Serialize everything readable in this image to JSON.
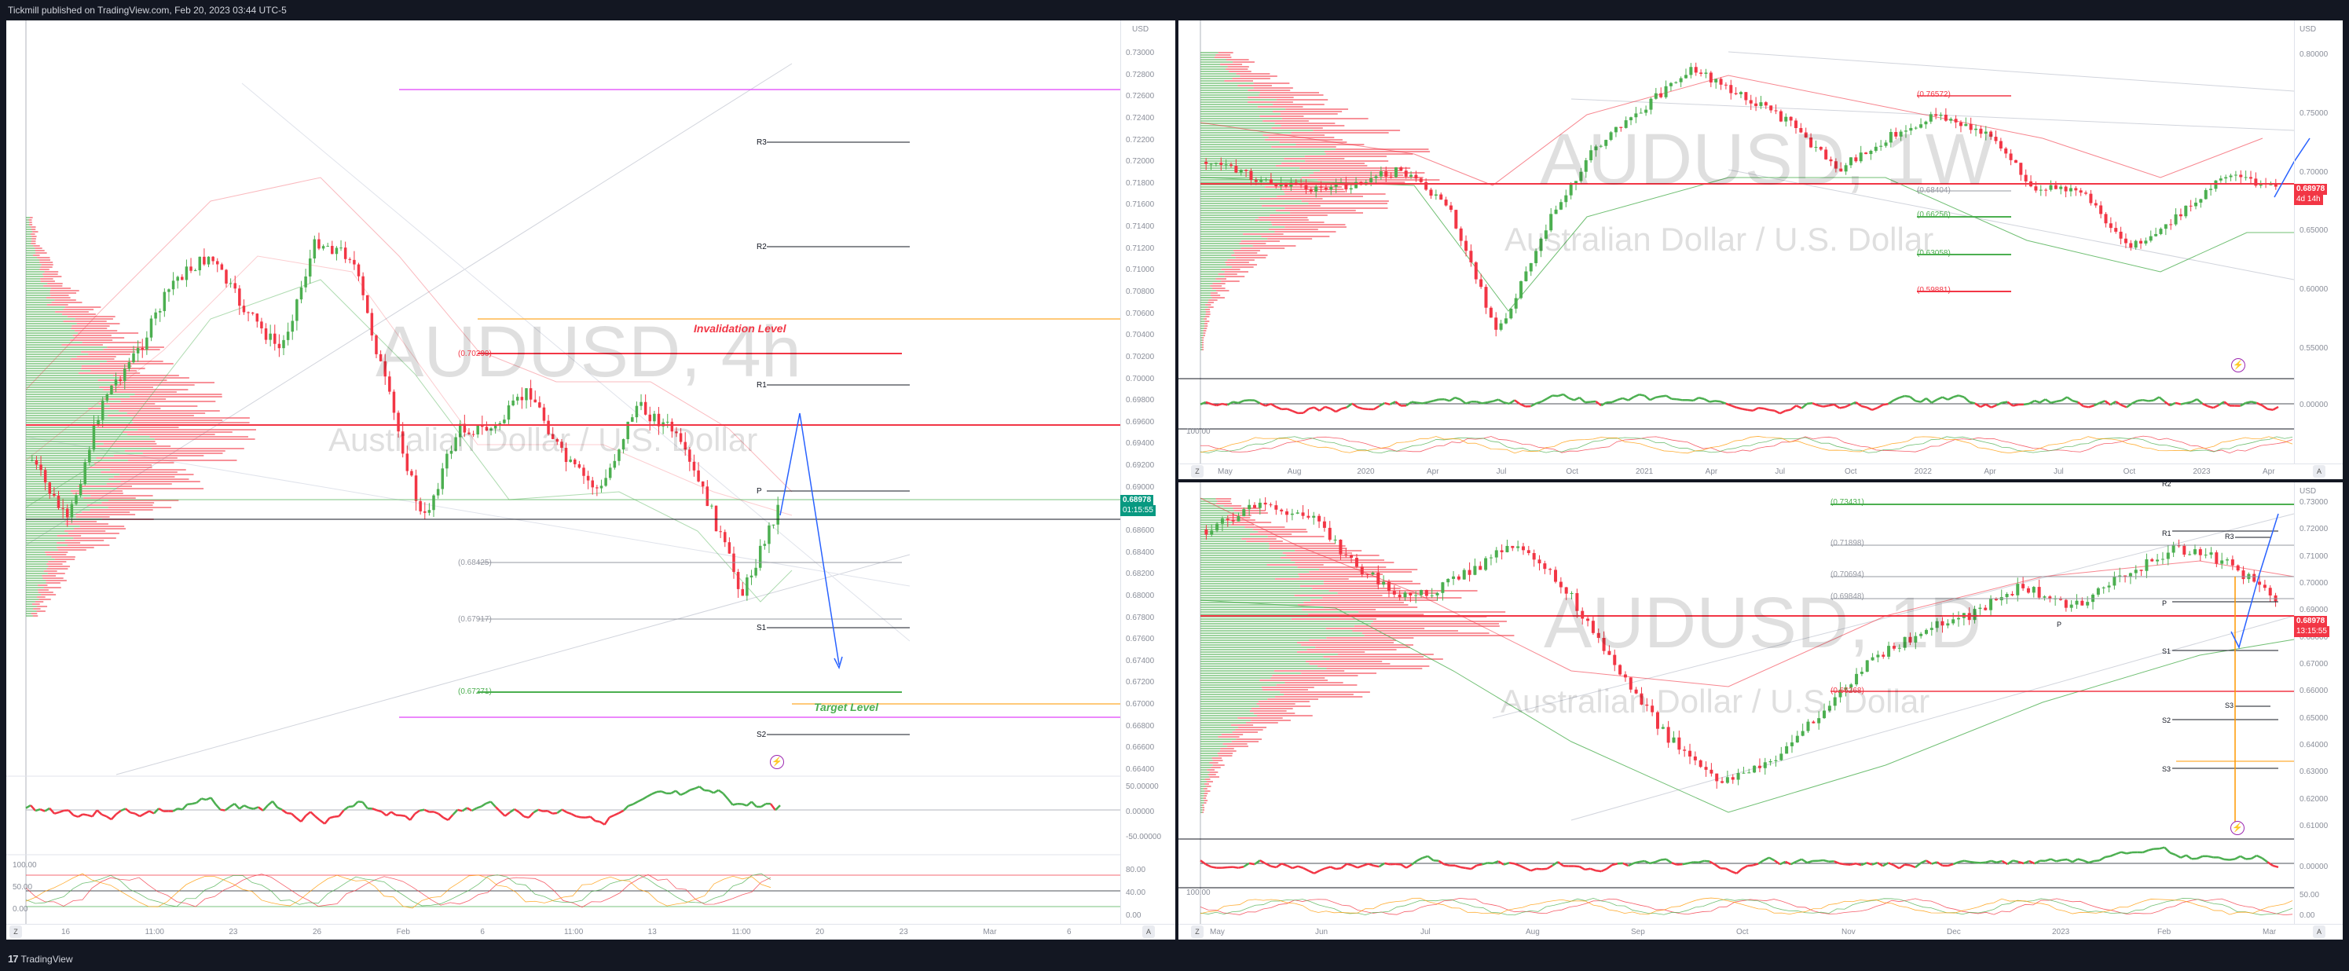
{
  "header": {
    "publish_info": "Tickmill published on TradingView.com, Feb 20, 2023 03:44 UTC-5"
  },
  "footer": {
    "brand": "TradingView"
  },
  "colors": {
    "up": "#4caf50",
    "down": "#f23645",
    "background": "#131722",
    "purple": "#9c27b0",
    "orange": "#ff9800",
    "accent_blue": "#2962ff"
  },
  "icons": {
    "logo": "tradingview-logo-icon",
    "alert": "lightning-alert-icon",
    "settings": "gear-icon"
  },
  "panel_4h": {
    "symbol": "AUDUSD, 4h",
    "description": "Australian Dollar / U.S. Dollar",
    "price_tag": "0.68978",
    "countdown": "01:15:55",
    "currency": "USD",
    "price_axis": [
      "0.73000",
      "0.72800",
      "0.72600",
      "0.72400",
      "0.72200",
      "0.72000",
      "0.71800",
      "0.71600",
      "0.71400",
      "0.71200",
      "0.71000",
      "0.70800",
      "0.70600",
      "0.70400",
      "0.70200",
      "0.70000",
      "0.69800",
      "0.69600",
      "0.69400",
      "0.69200",
      "0.69000",
      "0.68800",
      "0.68600",
      "0.68400",
      "0.68200",
      "0.68000",
      "0.67800",
      "0.67600",
      "0.67400",
      "0.67200",
      "0.67000",
      "0.66800",
      "0.66600",
      "0.66400"
    ],
    "osc_axis": [
      "50.00000",
      "0.00000",
      "-50.00000"
    ],
    "osc2_axis": [
      "80.00",
      "40.00",
      "0.00"
    ],
    "osc2_left": [
      "100.00",
      "50.00",
      "0.00"
    ],
    "time_axis": [
      "16",
      "11:00",
      "23",
      "26",
      "Feb",
      "6",
      "11:00",
      "13",
      "11:00",
      "20",
      "23",
      "Mar",
      "6"
    ],
    "levels": {
      "r3": "R3",
      "r2": "R2",
      "r1": "R1",
      "p": "P",
      "s1": "S1",
      "s2": "S2"
    },
    "invalidation_label": "Invalidation Level",
    "target_label": "Target Level",
    "fib_labels": {
      "a": "(0.70290)",
      "b": "(0.68425)",
      "c": "(0.67917)",
      "d": "(0.67271)"
    }
  },
  "panel_1w": {
    "symbol": "AUDUSD, 1W",
    "description": "Australian Dollar / U.S. Dollar",
    "price_tag": "0.68978",
    "countdown": "4d 14h",
    "currency": "USD",
    "price_axis": [
      "0.80000",
      "0.75000",
      "0.70000",
      "0.65000",
      "0.60000",
      "0.55000"
    ],
    "osc_axis": [
      "0.00000"
    ],
    "osc2_left": [
      "100.00"
    ],
    "time_axis": [
      "May",
      "Aug",
      "2020",
      "Apr",
      "Jul",
      "Oct",
      "2021",
      "Apr",
      "Jul",
      "Oct",
      "2022",
      "Apr",
      "Jul",
      "Oct",
      "2023",
      "Apr"
    ],
    "fib_labels": {
      "a": "(0.76572)",
      "b": "(0.68404)",
      "c": "(0.66256)",
      "d": "(0.63058)",
      "e": "(0.59881)"
    }
  },
  "panel_1d": {
    "symbol": "AUDUSD, 1D",
    "description": "Australian Dollar / U.S. Dollar",
    "price_tag": "0.68978",
    "countdown": "13:15:55",
    "currency": "USD",
    "price_axis": [
      "0.73000",
      "0.72000",
      "0.71000",
      "0.70000",
      "0.69000",
      "0.68000",
      "0.67000",
      "0.66000",
      "0.65000",
      "0.64000",
      "0.63000",
      "0.62000",
      "0.61000"
    ],
    "osc_axis": [
      "0.00000"
    ],
    "osc2_axis": [
      "50.00",
      "0.00"
    ],
    "osc2_left": [
      "100.00"
    ],
    "time_axis": [
      "May",
      "Jun",
      "Jul",
      "Aug",
      "Sep",
      "Oct",
      "Nov",
      "Dec",
      "2023",
      "Feb",
      "Mar"
    ],
    "levels": {
      "r2": "R2",
      "r1": "R1",
      "r3": "R3",
      "p": "P",
      "p2": "P",
      "s1": "S1",
      "s3": "S3",
      "s2": "S2",
      "s3b": "S3"
    },
    "fib_labels": {
      "a": "(0.73431)",
      "b": "(0.71898)",
      "c": "(0.70694)",
      "d": "(0.69848)",
      "e": "(0.66268)"
    }
  }
}
